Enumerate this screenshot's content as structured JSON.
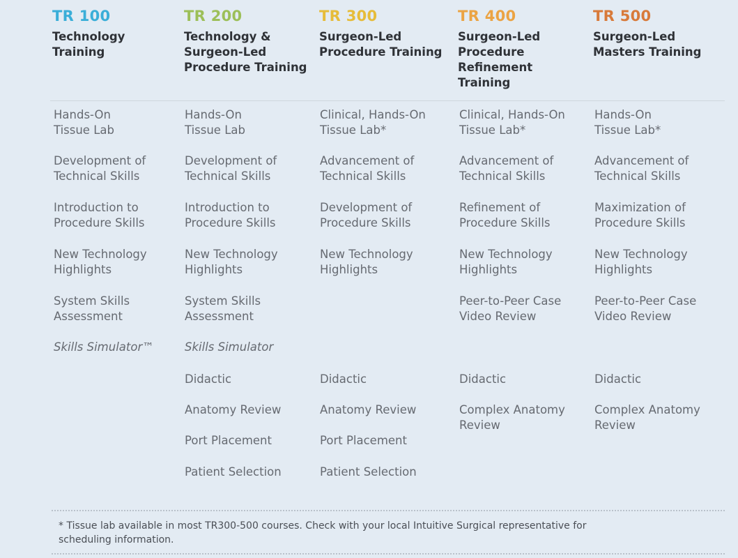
{
  "columns": [
    {
      "code": "TR 100",
      "title": [
        "Technology",
        "Training"
      ],
      "items": [
        [
          "Hands-On",
          "Tissue Lab"
        ],
        [
          "Development of",
          "Technical Skills"
        ],
        [
          "Introduction to",
          "Procedure Skills"
        ],
        [
          "New Technology",
          "Highlights"
        ],
        [
          "System Skills",
          "Assessment"
        ],
        [
          "Skills Simulator™"
        ]
      ]
    },
    {
      "code": "TR 200",
      "title": [
        "Technology &",
        "Surgeon-Led",
        "Procedure Training"
      ],
      "items": [
        [
          "Hands-On",
          "Tissue Lab"
        ],
        [
          "Development of",
          "Technical Skills"
        ],
        [
          "Introduction to",
          "Procedure Skills"
        ],
        [
          "New Technology",
          "Highlights"
        ],
        [
          "System Skills",
          "Assessment"
        ],
        [
          "Skills Simulator"
        ],
        [
          "Didactic"
        ],
        [
          "Anatomy Review"
        ],
        [
          "Port Placement"
        ],
        [
          "Patient Selection"
        ]
      ]
    },
    {
      "code": "TR 300",
      "title": [
        "Surgeon-Led",
        "Procedure Training"
      ],
      "items": [
        [
          "Clinical, Hands-On",
          "Tissue Lab*"
        ],
        [
          "Advancement of",
          "Technical Skills"
        ],
        [
          "Development of",
          "Procedure Skills"
        ],
        [
          "New Technology",
          "Highlights"
        ],
        [
          "Didactic"
        ],
        [
          "Anatomy Review"
        ],
        [
          "Port Placement"
        ],
        [
          "Patient Selection"
        ]
      ]
    },
    {
      "code": "TR 400",
      "title": [
        "Surgeon-Led",
        "Procedure",
        "Refinement",
        "Training"
      ],
      "items": [
        [
          "Clinical, Hands-On",
          "Tissue Lab*"
        ],
        [
          "Advancement of",
          "Technical Skills"
        ],
        [
          "Refinement of",
          "Procedure Skills"
        ],
        [
          "New Technology",
          "Highlights"
        ],
        [
          "Peer-to-Peer Case",
          "Video Review"
        ],
        [
          "Didactic"
        ],
        [
          "Complex Anatomy",
          "Review"
        ]
      ]
    },
    {
      "code": "TR 500",
      "title": [
        "Surgeon-Led",
        "Masters Training"
      ],
      "items": [
        [
          "Hands-On",
          "Tissue Lab*"
        ],
        [
          "Advancement of",
          "Technical Skills"
        ],
        [
          "Maximization of",
          "Procedure Skills"
        ],
        [
          "New Technology",
          "Highlights"
        ],
        [
          "Peer-to-Peer Case",
          "Video Review"
        ],
        [
          "Didactic"
        ],
        [
          "Complex Anatomy",
          "Review"
        ]
      ]
    }
  ],
  "footnote": [
    "* Tissue lab available in most TR300-500 courses. Check with your local Intuitive Surgical representative for",
    "scheduling information."
  ]
}
